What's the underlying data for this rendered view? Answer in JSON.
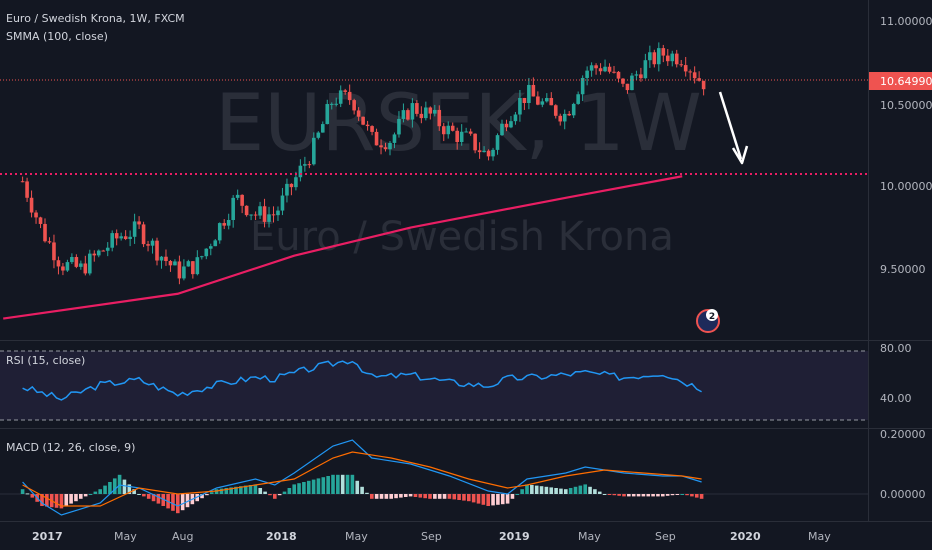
{
  "header": {
    "symbol_line": "Euro / Swedish Krona, 1W, FXCM",
    "indicator_line": "SMMA (100, close)",
    "watermark_symbol": "EURSEK, 1W",
    "watermark_name": "Euro / Swedish Krona"
  },
  "rsi_label": "RSI (15, close)",
  "macd_label": "MACD (12, 26, close, 9)",
  "badge_count": "2",
  "price_axis": {
    "ticks": [
      "11.00000",
      "10.50000",
      "10.00000",
      "9.50000"
    ],
    "current": "10.64990"
  },
  "rsi_axis": {
    "ticks": [
      "80.00",
      "40.00"
    ]
  },
  "macd_axis": {
    "ticks": [
      "0.20000",
      "0.00000"
    ]
  },
  "time_axis": {
    "labels": [
      {
        "text": "2017",
        "bold": true
      },
      {
        "text": "May",
        "bold": false
      },
      {
        "text": "Aug",
        "bold": false
      },
      {
        "text": "2018",
        "bold": true
      },
      {
        "text": "May",
        "bold": false
      },
      {
        "text": "Sep",
        "bold": false
      },
      {
        "text": "2019",
        "bold": true
      },
      {
        "text": "May",
        "bold": false
      },
      {
        "text": "Sep",
        "bold": false
      },
      {
        "text": "2020",
        "bold": true
      },
      {
        "text": "May",
        "bold": false
      }
    ]
  },
  "colors": {
    "background": "#131722",
    "up": "#26a69a",
    "down": "#ef5350",
    "smma": "#e91e63",
    "level": "#e91e63",
    "current": "#ef5350",
    "rsi": "#2196f3",
    "rsi_band": "#7e57c2",
    "macd": "#2196f3",
    "signal": "#ff6d00",
    "arrow": "#ffffff"
  },
  "chart_data": [
    {
      "type": "candlestick",
      "title": "Euro / Swedish Krona, 1W, FXCM",
      "y_range": [
        9.2,
        11.1
      ],
      "x_range": [
        "2016-11",
        "2020-07"
      ],
      "current_price": 10.6499,
      "horizontal_level": 10.08,
      "smma": {
        "name": "SMMA (100, close)",
        "points": [
          [
            "2016-11",
            9.22
          ],
          [
            "2017-08",
            9.37
          ],
          [
            "2018-02",
            9.6
          ],
          [
            "2018-08",
            9.77
          ],
          [
            "2019-04",
            9.95
          ],
          [
            "2019-10",
            10.08
          ]
        ]
      },
      "close_path": [
        [
          "2016-12",
          10.05
        ],
        [
          "2017-01",
          9.75
        ],
        [
          "2017-02",
          9.55
        ],
        [
          "2017-03",
          9.52
        ],
        [
          "2017-04",
          9.62
        ],
        [
          "2017-05",
          9.72
        ],
        [
          "2017-06",
          9.76
        ],
        [
          "2017-07",
          9.62
        ],
        [
          "2017-08",
          9.5
        ],
        [
          "2017-09",
          9.55
        ],
        [
          "2017-10",
          9.75
        ],
        [
          "2017-11",
          9.95
        ],
        [
          "2017-12",
          9.85
        ],
        [
          "2018-01",
          9.85
        ],
        [
          "2018-02",
          10.05
        ],
        [
          "2018-03",
          10.25
        ],
        [
          "2018-04",
          10.55
        ],
        [
          "2018-05",
          10.55
        ],
        [
          "2018-06",
          10.3
        ],
        [
          "2018-07",
          10.3
        ],
        [
          "2018-08",
          10.5
        ],
        [
          "2018-09",
          10.45
        ],
        [
          "2018-10",
          10.35
        ],
        [
          "2018-11",
          10.3
        ],
        [
          "2018-12",
          10.2
        ],
        [
          "2019-01",
          10.45
        ],
        [
          "2019-02",
          10.58
        ],
        [
          "2019-03",
          10.5
        ],
        [
          "2019-04",
          10.45
        ],
        [
          "2019-05",
          10.72
        ],
        [
          "2019-06",
          10.75
        ],
        [
          "2019-07",
          10.6
        ],
        [
          "2019-08",
          10.75
        ],
        [
          "2019-09",
          10.82
        ],
        [
          "2019-10",
          10.8
        ],
        [
          "2019-11",
          10.65
        ]
      ],
      "annotation": "arrow pointing down toward horizontal level"
    },
    {
      "type": "line",
      "name": "RSI (15, close)",
      "y_ticks": [
        80,
        40
      ],
      "band": [
        80,
        30
      ],
      "points": [
        [
          "2016-12",
          50
        ],
        [
          "2017-02",
          40
        ],
        [
          "2017-04",
          52
        ],
        [
          "2017-06",
          56
        ],
        [
          "2017-08",
          44
        ],
        [
          "2017-10",
          52
        ],
        [
          "2017-12",
          58
        ],
        [
          "2018-01",
          57
        ],
        [
          "2018-03",
          66
        ],
        [
          "2018-05",
          73
        ],
        [
          "2018-06",
          58
        ],
        [
          "2018-08",
          60
        ],
        [
          "2018-10",
          54
        ],
        [
          "2018-12",
          51
        ],
        [
          "2019-01",
          57
        ],
        [
          "2019-03",
          59
        ],
        [
          "2019-05",
          62
        ],
        [
          "2019-07",
          58
        ],
        [
          "2019-09",
          62
        ],
        [
          "2019-10",
          55
        ],
        [
          "2019-11",
          49
        ]
      ]
    },
    {
      "type": "macd",
      "name": "MACD (12, 26, close, 9)",
      "y_ticks": [
        0.2,
        0
      ],
      "macd": [
        [
          "2016-12",
          0.04
        ],
        [
          "2017-01",
          -0.03
        ],
        [
          "2017-02",
          -0.07
        ],
        [
          "2017-04",
          -0.03
        ],
        [
          "2017-05",
          0.03
        ],
        [
          "2017-06",
          0.02
        ],
        [
          "2017-08",
          -0.04
        ],
        [
          "2017-10",
          0.02
        ],
        [
          "2017-12",
          0.05
        ],
        [
          "2018-01",
          0.03
        ],
        [
          "2018-02",
          0.07
        ],
        [
          "2018-04",
          0.16
        ],
        [
          "2018-05",
          0.18
        ],
        [
          "2018-06",
          0.12
        ],
        [
          "2018-08",
          0.1
        ],
        [
          "2018-10",
          0.06
        ],
        [
          "2018-12",
          0.01
        ],
        [
          "2019-01",
          0.0
        ],
        [
          "2019-02",
          0.05
        ],
        [
          "2019-04",
          0.07
        ],
        [
          "2019-05",
          0.09
        ],
        [
          "2019-07",
          0.07
        ],
        [
          "2019-09",
          0.06
        ],
        [
          "2019-10",
          0.06
        ],
        [
          "2019-11",
          0.04
        ]
      ],
      "signal": [
        [
          "2016-12",
          0.03
        ],
        [
          "2017-02",
          -0.04
        ],
        [
          "2017-04",
          -0.04
        ],
        [
          "2017-06",
          0.02
        ],
        [
          "2017-08",
          0.0
        ],
        [
          "2017-10",
          0.01
        ],
        [
          "2017-12",
          0.03
        ],
        [
          "2018-02",
          0.05
        ],
        [
          "2018-04",
          0.12
        ],
        [
          "2018-05",
          0.14
        ],
        [
          "2018-07",
          0.12
        ],
        [
          "2018-09",
          0.09
        ],
        [
          "2018-11",
          0.05
        ],
        [
          "2019-01",
          0.02
        ],
        [
          "2019-02",
          0.03
        ],
        [
          "2019-04",
          0.06
        ],
        [
          "2019-06",
          0.08
        ],
        [
          "2019-08",
          0.07
        ],
        [
          "2019-10",
          0.06
        ],
        [
          "2019-11",
          0.05
        ]
      ]
    }
  ]
}
